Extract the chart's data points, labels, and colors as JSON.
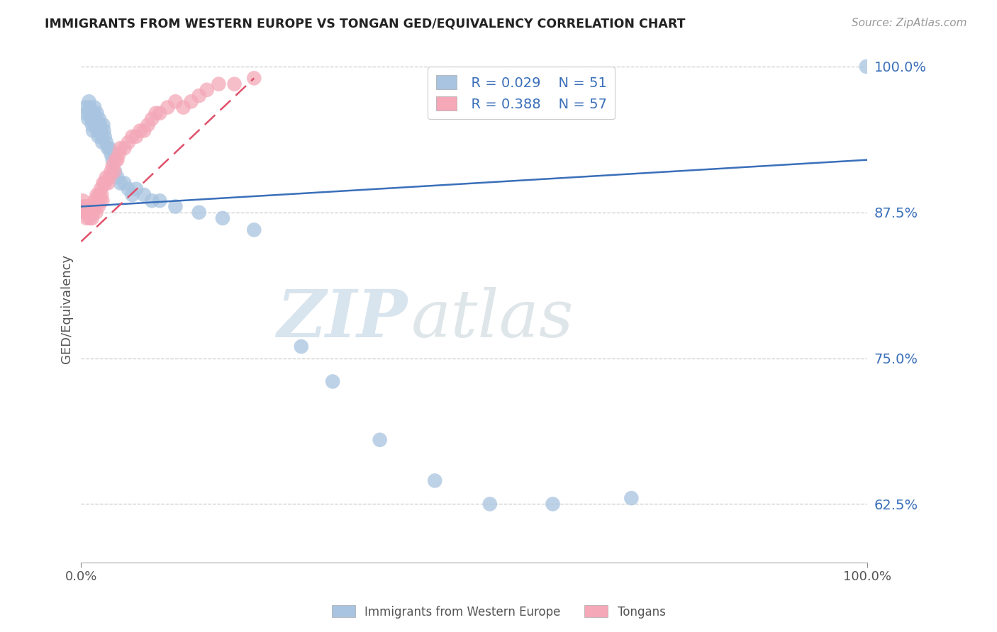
{
  "title": "IMMIGRANTS FROM WESTERN EUROPE VS TONGAN GED/EQUIVALENCY CORRELATION CHART",
  "source": "Source: ZipAtlas.com",
  "ylabel": "GED/Equivalency",
  "legend_label_blue": "Immigrants from Western Europe",
  "legend_label_pink": "Tongans",
  "legend_r_blue": "R = 0.029",
  "legend_n_blue": "N = 51",
  "legend_r_pink": "R = 0.388",
  "legend_n_pink": "N = 57",
  "color_blue": "#a8c4e0",
  "color_pink": "#f4a8b8",
  "trendline_blue": "#3a6fba",
  "trendline_pink": "#e0506a",
  "xlim": [
    0.0,
    1.0
  ],
  "ylim": [
    0.575,
    1.01
  ],
  "yticks": [
    0.625,
    0.75,
    0.875,
    1.0
  ],
  "ytick_labels": [
    "62.5%",
    "75.0%",
    "87.5%",
    "100.0%"
  ],
  "xtick_labels": [
    "0.0%",
    "100.0%"
  ],
  "watermark_zip": "ZIP",
  "watermark_atlas": "atlas",
  "background_color": "#ffffff",
  "blue_scatter_x": [
    0.005,
    0.007,
    0.009,
    0.01,
    0.011,
    0.012,
    0.013,
    0.014,
    0.015,
    0.016,
    0.017,
    0.018,
    0.019,
    0.02,
    0.021,
    0.022,
    0.023,
    0.024,
    0.025,
    0.026,
    0.027,
    0.028,
    0.029,
    0.03,
    0.032,
    0.034,
    0.036,
    0.038,
    0.04,
    0.043,
    0.046,
    0.05,
    0.055,
    0.06,
    0.065,
    0.07,
    0.08,
    0.09,
    0.1,
    0.12,
    0.15,
    0.18,
    0.22,
    0.28,
    0.32,
    0.38,
    0.45,
    0.52,
    0.6,
    0.7,
    0.999
  ],
  "blue_scatter_y": [
    0.965,
    0.96,
    0.955,
    0.97,
    0.965,
    0.96,
    0.955,
    0.95,
    0.945,
    0.96,
    0.965,
    0.95,
    0.955,
    0.96,
    0.945,
    0.94,
    0.955,
    0.95,
    0.945,
    0.94,
    0.935,
    0.95,
    0.945,
    0.94,
    0.935,
    0.93,
    0.93,
    0.925,
    0.92,
    0.91,
    0.905,
    0.9,
    0.9,
    0.895,
    0.89,
    0.895,
    0.89,
    0.885,
    0.885,
    0.88,
    0.875,
    0.87,
    0.86,
    0.76,
    0.73,
    0.68,
    0.645,
    0.625,
    0.625,
    0.63,
    1.0
  ],
  "pink_scatter_x": [
    0.002,
    0.003,
    0.004,
    0.005,
    0.006,
    0.007,
    0.008,
    0.009,
    0.01,
    0.011,
    0.012,
    0.013,
    0.014,
    0.015,
    0.016,
    0.017,
    0.018,
    0.019,
    0.02,
    0.021,
    0.022,
    0.023,
    0.024,
    0.025,
    0.026,
    0.027,
    0.028,
    0.03,
    0.032,
    0.034,
    0.036,
    0.038,
    0.04,
    0.042,
    0.044,
    0.046,
    0.048,
    0.05,
    0.055,
    0.06,
    0.065,
    0.07,
    0.075,
    0.08,
    0.085,
    0.09,
    0.095,
    0.1,
    0.11,
    0.12,
    0.13,
    0.14,
    0.15,
    0.16,
    0.175,
    0.195,
    0.22
  ],
  "pink_scatter_y": [
    0.885,
    0.88,
    0.875,
    0.88,
    0.875,
    0.87,
    0.875,
    0.88,
    0.875,
    0.87,
    0.88,
    0.875,
    0.87,
    0.875,
    0.88,
    0.885,
    0.88,
    0.875,
    0.89,
    0.885,
    0.88,
    0.89,
    0.885,
    0.895,
    0.89,
    0.885,
    0.9,
    0.9,
    0.905,
    0.9,
    0.905,
    0.91,
    0.915,
    0.91,
    0.92,
    0.92,
    0.925,
    0.93,
    0.93,
    0.935,
    0.94,
    0.94,
    0.945,
    0.945,
    0.95,
    0.955,
    0.96,
    0.96,
    0.965,
    0.97,
    0.965,
    0.97,
    0.975,
    0.98,
    0.985,
    0.985,
    0.99
  ],
  "blue_trend_x": [
    0.0,
    1.0
  ],
  "blue_trend_y": [
    0.88,
    0.92
  ],
  "pink_trend_x": [
    0.0,
    0.22
  ],
  "pink_trend_y": [
    0.85,
    0.99
  ]
}
